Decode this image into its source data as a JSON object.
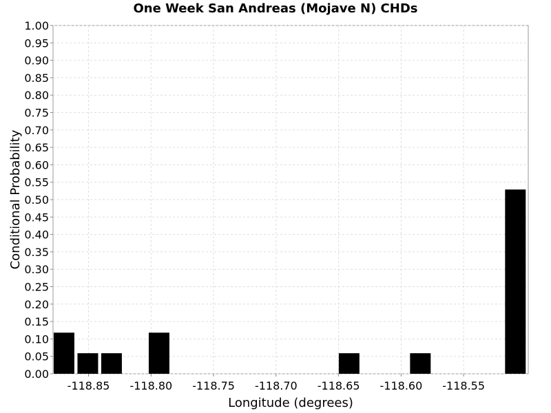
{
  "chart_data": {
    "type": "bar",
    "title": "One Week San Andreas (Mojave N) CHDs",
    "xlabel": "Longitude (degrees)",
    "ylabel": "Conditional Probability",
    "xlim": [
      -118.8784,
      -118.4983
    ],
    "ylim": [
      0,
      1.0
    ],
    "bar_width": 0.0165,
    "x": [
      -118.8696,
      -118.8506,
      -118.8316,
      -118.7936,
      -118.6416,
      -118.5846,
      -118.5086
    ],
    "values": [
      0.118,
      0.059,
      0.059,
      0.118,
      0.059,
      0.059,
      0.529
    ],
    "x_ticks": [
      "-118.85",
      "-118.80",
      "-118.75",
      "-118.70",
      "-118.65",
      "-118.60",
      "-118.55"
    ],
    "x_tick_values": [
      -118.85,
      -118.8,
      -118.75,
      -118.7,
      -118.65,
      -118.6,
      -118.55
    ],
    "y_ticks": [
      "0.00",
      "0.05",
      "0.10",
      "0.15",
      "0.20",
      "0.25",
      "0.30",
      "0.35",
      "0.40",
      "0.45",
      "0.50",
      "0.55",
      "0.60",
      "0.65",
      "0.70",
      "0.75",
      "0.80",
      "0.85",
      "0.90",
      "0.95",
      "1.00"
    ],
    "y_tick_values": [
      0,
      0.05,
      0.1,
      0.15,
      0.2,
      0.25,
      0.3,
      0.35,
      0.4,
      0.45,
      0.5,
      0.55,
      0.6,
      0.65,
      0.7,
      0.75,
      0.8,
      0.85,
      0.9,
      0.95,
      1.0
    ],
    "grid": true,
    "bar_color": "#000000",
    "grid_color": "#dddddd"
  }
}
